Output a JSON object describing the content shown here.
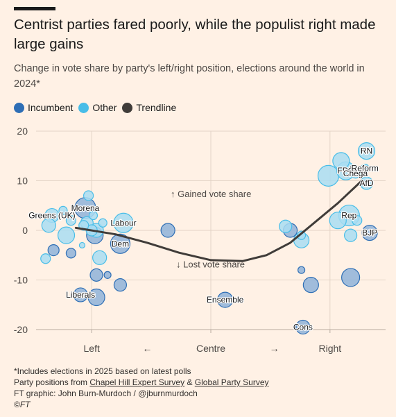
{
  "header": {
    "title": "Centrist parties fared poorly, while the populist right made large gains",
    "subtitle": "Change in vote share by party's left/right position, elections around the world in 2024*"
  },
  "legend": [
    {
      "label": "Incumbent",
      "color": "#2e6eb5"
    },
    {
      "label": "Other",
      "color": "#48bde8"
    },
    {
      "label": "Trendline",
      "color": "#403c39"
    }
  ],
  "footer": {
    "note": "*Includes elections in 2025 based on latest polls",
    "sources_prefix": "Party positions from ",
    "source1": "Chapel Hill Expert Survey",
    "source_joiner": " & ",
    "source2": "Global Party Survey",
    "credit": "FT graphic: John Burn-Murdoch / @jburnmurdoch",
    "copyright": "©FT"
  },
  "chart_data": {
    "type": "scatter",
    "ylim": [
      -20,
      20
    ],
    "xlim": [
      -1.1,
      1.1
    ],
    "y_ticks": [
      "20",
      "10",
      "0",
      "-10",
      "-20"
    ],
    "x_axis_labels": {
      "left": "Left",
      "left_arrow": "←",
      "centre": "Centre",
      "right_arrow": "→",
      "right": "Right"
    },
    "annotations": {
      "gained": "↑ Gained vote share",
      "lost": "↓ Lost vote share"
    },
    "grid": true,
    "colors": {
      "incumbent": "#2e6eb5",
      "other": "#48bde8",
      "trend": "#403c39",
      "grid": "#e3d4c6",
      "incumbent_label_fill": "#8fb3d9",
      "other_label_fill": "#a9ddf2"
    },
    "trendline": [
      {
        "x": -0.85,
        "y": 0.5
      },
      {
        "x": -0.6,
        "y": -0.8
      },
      {
        "x": -0.4,
        "y": -2.5
      },
      {
        "x": -0.2,
        "y": -4.5
      },
      {
        "x": 0,
        "y": -6
      },
      {
        "x": 0.2,
        "y": -6.2
      },
      {
        "x": 0.35,
        "y": -5
      },
      {
        "x": 0.5,
        "y": -2.5
      },
      {
        "x": 0.65,
        "y": 1.5
      },
      {
        "x": 0.8,
        "y": 5.5
      },
      {
        "x": 0.95,
        "y": 10
      }
    ],
    "points": [
      {
        "x": 0.98,
        "y": 16,
        "size": 12,
        "type": "other",
        "label": "RN"
      },
      {
        "x": 0.82,
        "y": 14,
        "size": 12,
        "type": "other",
        "label": ""
      },
      {
        "x": 0.85,
        "y": 12,
        "size": 13,
        "type": "other",
        "label": "FPÖ"
      },
      {
        "x": 0.91,
        "y": 11.5,
        "size": 7,
        "type": "other",
        "label": "Chega"
      },
      {
        "x": 0.97,
        "y": 12.5,
        "size": 6,
        "type": "other",
        "label": "Reform"
      },
      {
        "x": 0.98,
        "y": 9.5,
        "size": 9,
        "type": "other",
        "label": "AfD"
      },
      {
        "x": 0.74,
        "y": 11,
        "size": 15,
        "type": "other",
        "label": ""
      },
      {
        "x": 0.8,
        "y": 2,
        "size": 12,
        "type": "other",
        "label": ""
      },
      {
        "x": 0.87,
        "y": 3,
        "size": 15,
        "type": "other",
        "label": "Rep"
      },
      {
        "x": 0.92,
        "y": 2,
        "size": 7,
        "type": "other",
        "label": ""
      },
      {
        "x": 0.88,
        "y": -1,
        "size": 9,
        "type": "other",
        "label": ""
      },
      {
        "x": 1.0,
        "y": -0.5,
        "size": 11,
        "type": "incumbent",
        "label": "BJP"
      },
      {
        "x": 0.88,
        "y": -9.5,
        "size": 13,
        "type": "incumbent",
        "label": ""
      },
      {
        "x": 0.63,
        "y": -11,
        "size": 11,
        "type": "incumbent",
        "label": ""
      },
      {
        "x": 0.57,
        "y": -8,
        "size": 5,
        "type": "incumbent",
        "label": ""
      },
      {
        "x": 0.58,
        "y": -19.5,
        "size": 10,
        "type": "incumbent",
        "label": "Cons"
      },
      {
        "x": 0.47,
        "y": 0.8,
        "size": 9,
        "type": "other",
        "label": ""
      },
      {
        "x": 0.5,
        "y": 0,
        "size": 10,
        "type": "incumbent",
        "label": ""
      },
      {
        "x": 0.57,
        "y": -2,
        "size": 11,
        "type": "other",
        "label": ""
      },
      {
        "x": 0.57,
        "y": -1,
        "size": 6,
        "type": "other",
        "label": ""
      },
      {
        "x": 0.09,
        "y": -14,
        "size": 11,
        "type": "incumbent",
        "label": "Ensemble"
      },
      {
        "x": -0.27,
        "y": 0,
        "size": 10,
        "type": "incumbent",
        "label": ""
      },
      {
        "x": -0.55,
        "y": 1.5,
        "size": 14,
        "type": "other",
        "label": "Labour"
      },
      {
        "x": -0.57,
        "y": -2.7,
        "size": 14,
        "type": "incumbent",
        "label": "Dem"
      },
      {
        "x": -0.57,
        "y": -11,
        "size": 9,
        "type": "incumbent",
        "label": ""
      },
      {
        "x": -0.65,
        "y": -9,
        "size": 5,
        "type": "incumbent",
        "label": ""
      },
      {
        "x": -0.72,
        "y": -9,
        "size": 9,
        "type": "incumbent",
        "label": ""
      },
      {
        "x": -0.72,
        "y": -13.5,
        "size": 12,
        "type": "incumbent",
        "label": ""
      },
      {
        "x": -0.82,
        "y": -13,
        "size": 10,
        "type": "incumbent",
        "label": "Liberals"
      },
      {
        "x": -0.7,
        "y": -5.5,
        "size": 10,
        "type": "other",
        "label": ""
      },
      {
        "x": -0.73,
        "y": -1,
        "size": 12,
        "type": "incumbent",
        "label": ""
      },
      {
        "x": -0.72,
        "y": 0,
        "size": 10,
        "type": "other",
        "label": ""
      },
      {
        "x": -0.79,
        "y": 4.5,
        "size": 15,
        "type": "incumbent",
        "label": "Morena"
      },
      {
        "x": -0.77,
        "y": 7,
        "size": 7,
        "type": "other",
        "label": ""
      },
      {
        "x": -0.74,
        "y": 3,
        "size": 6,
        "type": "other",
        "label": ""
      },
      {
        "x": -0.68,
        "y": 1.5,
        "size": 6,
        "type": "other",
        "label": ""
      },
      {
        "x": -0.78,
        "y": 1.5,
        "size": 9,
        "type": "other",
        "label": ""
      },
      {
        "x": -0.8,
        "y": 1,
        "size": 7,
        "type": "other",
        "label": ""
      },
      {
        "x": -0.81,
        "y": -3,
        "size": 4,
        "type": "other",
        "label": ""
      },
      {
        "x": -0.75,
        "y": 0,
        "size": 8,
        "type": "other",
        "label": ""
      },
      {
        "x": -1.0,
        "y": 3,
        "size": 10,
        "type": "other",
        "label": "Greens (UK)"
      },
      {
        "x": -0.93,
        "y": 4,
        "size": 6,
        "type": "other",
        "label": ""
      },
      {
        "x": -0.88,
        "y": 2,
        "size": 7,
        "type": "other",
        "label": ""
      },
      {
        "x": -1.02,
        "y": 1,
        "size": 10,
        "type": "other",
        "label": ""
      },
      {
        "x": -0.91,
        "y": -1,
        "size": 12,
        "type": "other",
        "label": ""
      },
      {
        "x": -0.99,
        "y": -4,
        "size": 8,
        "type": "incumbent",
        "label": ""
      },
      {
        "x": -1.04,
        "y": -5.7,
        "size": 7,
        "type": "other",
        "label": ""
      },
      {
        "x": -0.88,
        "y": -4.6,
        "size": 7,
        "type": "incumbent",
        "label": ""
      }
    ]
  }
}
